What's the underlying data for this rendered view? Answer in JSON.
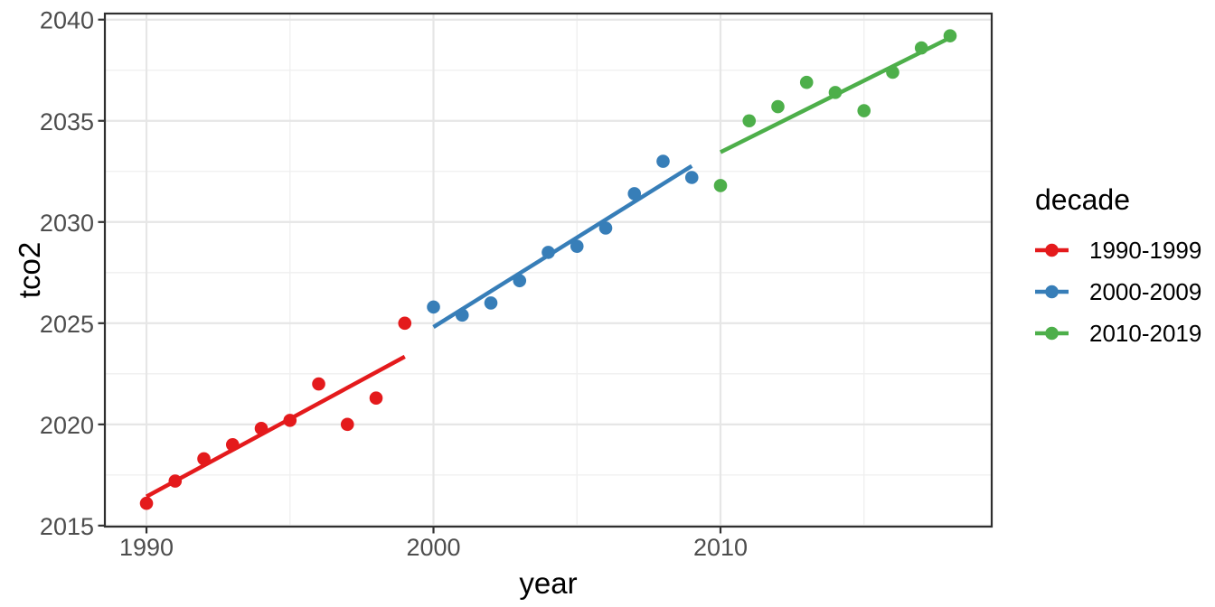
{
  "chart_data": {
    "type": "scatter",
    "xlabel": "year",
    "ylabel": "tco2",
    "x_ticks": [
      1990,
      2000,
      2010
    ],
    "x_minor_ticks": [
      1995,
      2005,
      2015
    ],
    "y_ticks": [
      2015,
      2020,
      2025,
      2030,
      2035,
      2040
    ],
    "y_minor_ticks": [
      2017.5,
      2022.5,
      2027.5,
      2032.5,
      2037.5
    ],
    "xlim": [
      1988.55,
      2019.45
    ],
    "ylim": [
      2014.95,
      2040.3
    ],
    "grid": true,
    "smooth": "linear-trend-per-series",
    "legend": {
      "title": "decade",
      "position": "right"
    },
    "series": [
      {
        "name": "1990-1999",
        "color": "#E41A1C",
        "x": [
          1990,
          1991,
          1992,
          1993,
          1994,
          1995,
          1996,
          1997,
          1998,
          1999
        ],
        "y": [
          2016.1,
          2017.2,
          2018.3,
          2019.0,
          2019.8,
          2020.2,
          2022.0,
          2020.0,
          2021.3,
          2025.0
        ]
      },
      {
        "name": "2000-2009",
        "color": "#377EB8",
        "x": [
          2000,
          2001,
          2002,
          2003,
          2004,
          2005,
          2006,
          2007,
          2008,
          2009
        ],
        "y": [
          2025.8,
          2025.4,
          2026.0,
          2027.1,
          2028.5,
          2028.8,
          2029.7,
          2031.4,
          2033.0,
          2032.2
        ]
      },
      {
        "name": "2010-2019",
        "color": "#4DAF4A",
        "x": [
          2010,
          2011,
          2012,
          2013,
          2014,
          2015,
          2016,
          2017,
          2018
        ],
        "y": [
          2031.8,
          2035.0,
          2035.7,
          2036.9,
          2036.4,
          2035.5,
          2037.4,
          2038.6,
          2039.2
        ]
      }
    ]
  },
  "styles": {
    "background": "#FFFFFF",
    "panel_background": "#FFFFFF",
    "grid_major": "#E6E6E6",
    "grid_minor": "#EFEFEF",
    "panel_border": "#2F2F2F",
    "tick_color": "#333333",
    "tick_label_color": "#4D4D4D",
    "title_color": "#000000",
    "point_radius": 7.3,
    "line_width": 4.5
  }
}
